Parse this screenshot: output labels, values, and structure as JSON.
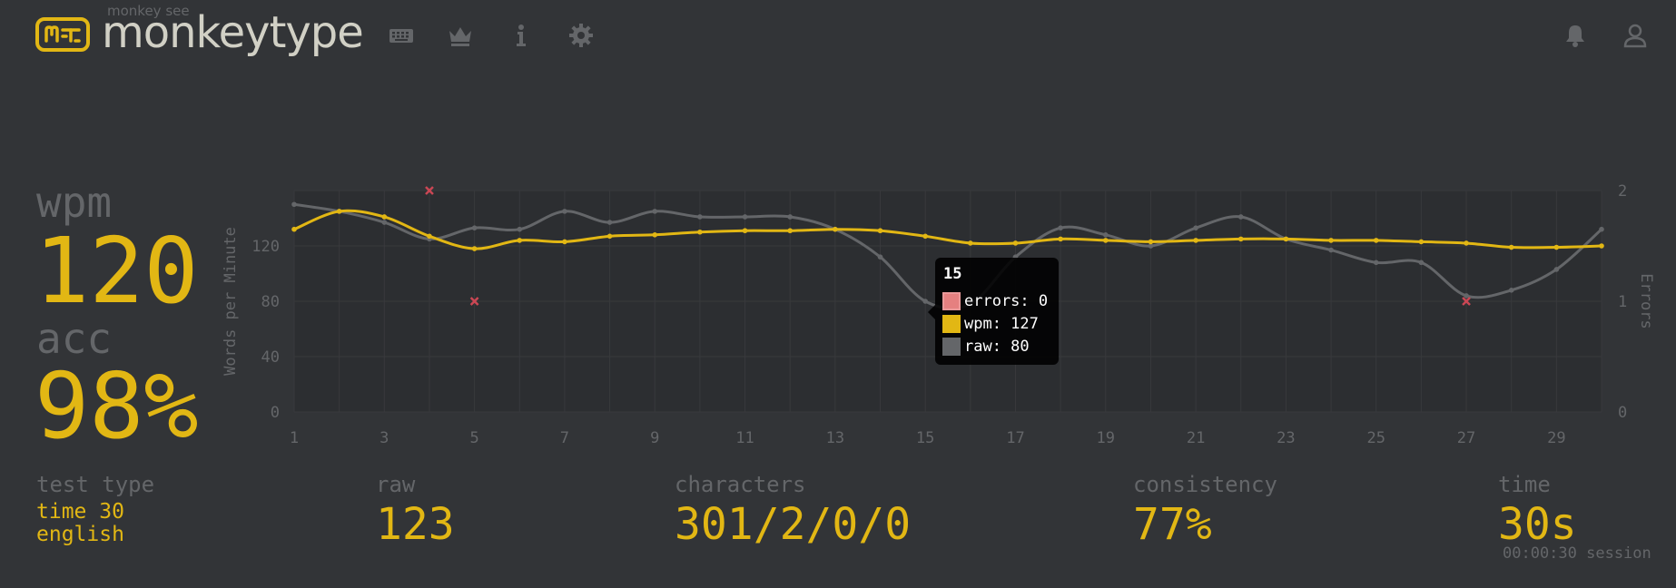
{
  "header": {
    "logo_small": "monkey see",
    "logo_text": "monkeytype",
    "nav": [
      {
        "name": "keyboard-icon"
      },
      {
        "name": "crown-icon"
      },
      {
        "name": "info-icon"
      },
      {
        "name": "gear-icon"
      }
    ],
    "right_icons": [
      {
        "name": "bell-icon"
      },
      {
        "name": "user-icon"
      }
    ]
  },
  "stats": {
    "wpm_label": "wpm",
    "wpm_value": "120",
    "acc_label": "acc",
    "acc_value": "98%"
  },
  "bottom": {
    "test_type_label": "test type",
    "test_type_line1": "time 30",
    "test_type_line2": "english",
    "raw_label": "raw",
    "raw_value": "123",
    "characters_label": "characters",
    "characters_value": "301/2/0/0",
    "consistency_label": "consistency",
    "consistency_value": "77%",
    "time_label": "time",
    "time_value": "30s",
    "session_text": "00:00:30 session"
  },
  "colors": {
    "background": "#323437",
    "accent": "#e2b714",
    "raw_line": "#646669",
    "error": "#ca4754",
    "text_main": "#d1d0c5",
    "sub": "#646669"
  },
  "tooltip": {
    "title": "15",
    "errors_text": "errors: 0",
    "wpm_text": "wpm: 127",
    "raw_text": "raw: 80"
  },
  "chart_data": {
    "type": "line",
    "ylabel": "Words per Minute",
    "y2label": "Errors",
    "ylim": [
      0,
      160
    ],
    "y2lim": [
      0,
      2
    ],
    "yticks": [
      "0",
      "40",
      "80",
      "120"
    ],
    "y2ticks": [
      "0",
      "1",
      "2"
    ],
    "xticks": [
      "1",
      "3",
      "5",
      "7",
      "9",
      "11",
      "13",
      "15",
      "17",
      "19",
      "21",
      "23",
      "25",
      "27",
      "29"
    ],
    "x": [
      1,
      2,
      3,
      4,
      5,
      6,
      7,
      8,
      9,
      10,
      11,
      12,
      13,
      14,
      15,
      16,
      17,
      18,
      19,
      20,
      21,
      22,
      23,
      24,
      25,
      26,
      27,
      28,
      29,
      30
    ],
    "series": [
      {
        "name": "wpm",
        "values": [
          132,
          145,
          141,
          127,
          118,
          124,
          123,
          127,
          128,
          130,
          131,
          131,
          132,
          131,
          127,
          122,
          122,
          125,
          124,
          123,
          124,
          125,
          125,
          124,
          124,
          123,
          122,
          119,
          119,
          120
        ]
      },
      {
        "name": "raw",
        "values": [
          150,
          145,
          137,
          125,
          133,
          132,
          145,
          137,
          145,
          141,
          141,
          141,
          132,
          112,
          80,
          78,
          112,
          133,
          128,
          120,
          133,
          141,
          125,
          117,
          108,
          108,
          84,
          88,
          103,
          132
        ]
      },
      {
        "name": "errors",
        "points": [
          [
            4,
            2
          ],
          [
            5,
            1
          ],
          [
            27,
            1
          ]
        ]
      }
    ],
    "grid": true,
    "tooltip_x": 15
  }
}
